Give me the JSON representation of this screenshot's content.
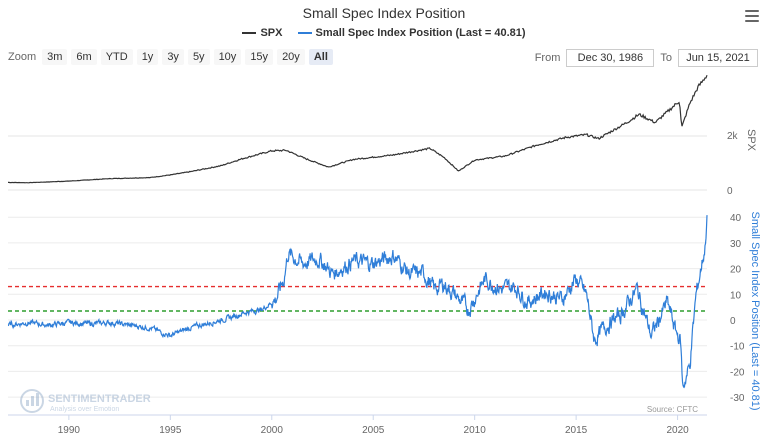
{
  "chart_data": [
    {
      "type": "line",
      "title": "Small Spec Index Position",
      "series": [
        {
          "name": "SPX",
          "color": "#333333",
          "x": [
            1987,
            1988,
            1990,
            1992,
            1994,
            1995,
            1996,
            1997.5,
            1998.5,
            2000,
            2000.7,
            2001.7,
            2002.8,
            2004,
            2006,
            2007.8,
            2008.5,
            2009.2,
            2010,
            2011.5,
            2013,
            2014.5,
            2015.5,
            2016.1,
            2017.5,
            2018.1,
            2018.9,
            2019.5,
            2020.1,
            2020.2,
            2020.6,
            2021.0,
            2021.45
          ],
          "values": [
            280,
            270,
            330,
            420,
            460,
            560,
            680,
            900,
            1150,
            1450,
            1470,
            1150,
            850,
            1130,
            1300,
            1540,
            1200,
            700,
            1110,
            1260,
            1650,
            1950,
            2050,
            1900,
            2500,
            2800,
            2500,
            2900,
            3300,
            2300,
            3200,
            3800,
            4255
          ]
        }
      ],
      "yaxis": {
        "label": "SPX",
        "ticks": [
          "0",
          "2k"
        ]
      }
    },
    {
      "type": "line",
      "series": [
        {
          "name": "Small Spec Index Position (Last = 40.81)",
          "color": "#2f7ed8",
          "x": [
            1987,
            1988,
            1989,
            1990,
            1991,
            1992,
            1993,
            1994,
            1994.6,
            1995,
            1996,
            1997,
            1998,
            1998.7,
            1999.5,
            2000.2,
            2000.6,
            2000.8,
            2001.5,
            2002.3,
            2003,
            2004,
            2005,
            2006,
            2006.8,
            2007.5,
            2008,
            2008.5,
            2009,
            2009.7,
            2010.5,
            2011.3,
            2012,
            2012.6,
            2013.5,
            2014.3,
            2015,
            2015.5,
            2015.9,
            2016.5,
            2017.2,
            2018,
            2018.7,
            2019.5,
            2019.9,
            2020.15,
            2020.25,
            2020.6,
            2020.9,
            2021.15,
            2021.35,
            2021.45
          ],
          "values": [
            -2,
            -1,
            -2,
            -1,
            -1.5,
            -1,
            -2,
            -3,
            -5,
            -6,
            -3,
            -1,
            1,
            3,
            4,
            8,
            16,
            26,
            22,
            24,
            18,
            23,
            22,
            25,
            18,
            18,
            12,
            14,
            10,
            4,
            16,
            12,
            13,
            7,
            11,
            8,
            16,
            10,
            -8,
            -2,
            2,
            12,
            -6,
            7,
            -4,
            -8,
            -26,
            -18,
            9,
            20,
            28,
            40.81
          ]
        }
      ],
      "yaxis": {
        "label": "Small Spec Index Position (Last = 40.81)",
        "ticks": [
          "40",
          "30",
          "20",
          "10",
          "0",
          "-10",
          "-20",
          "-30"
        ],
        "ylim": [
          -30,
          40
        ]
      },
      "reference_lines": [
        {
          "value": 13,
          "color": "#e62e2e"
        },
        {
          "value": 3.5,
          "color": "#2e9e2e"
        }
      ]
    }
  ],
  "xaxis": {
    "ticks": [
      "1990",
      "1995",
      "2000",
      "2005",
      "2010",
      "2015",
      "2020"
    ],
    "tick_years": [
      1990,
      1995,
      2000,
      2005,
      2010,
      2015,
      2020
    ],
    "xlim": [
      1987,
      2021.45
    ]
  },
  "ui": {
    "zoom_label": "Zoom",
    "zoom_buttons": [
      "3m",
      "6m",
      "YTD",
      "1y",
      "3y",
      "5y",
      "10y",
      "15y",
      "20y",
      "All"
    ],
    "from_label": "From",
    "from_value": "Dec 30, 1986",
    "to_label": "To",
    "to_value": "Jun 15, 2021",
    "source": "Source: CFTC",
    "watermark_name": "SENTIMENTRADER",
    "watermark_tag": "Analysis over Emotion"
  }
}
